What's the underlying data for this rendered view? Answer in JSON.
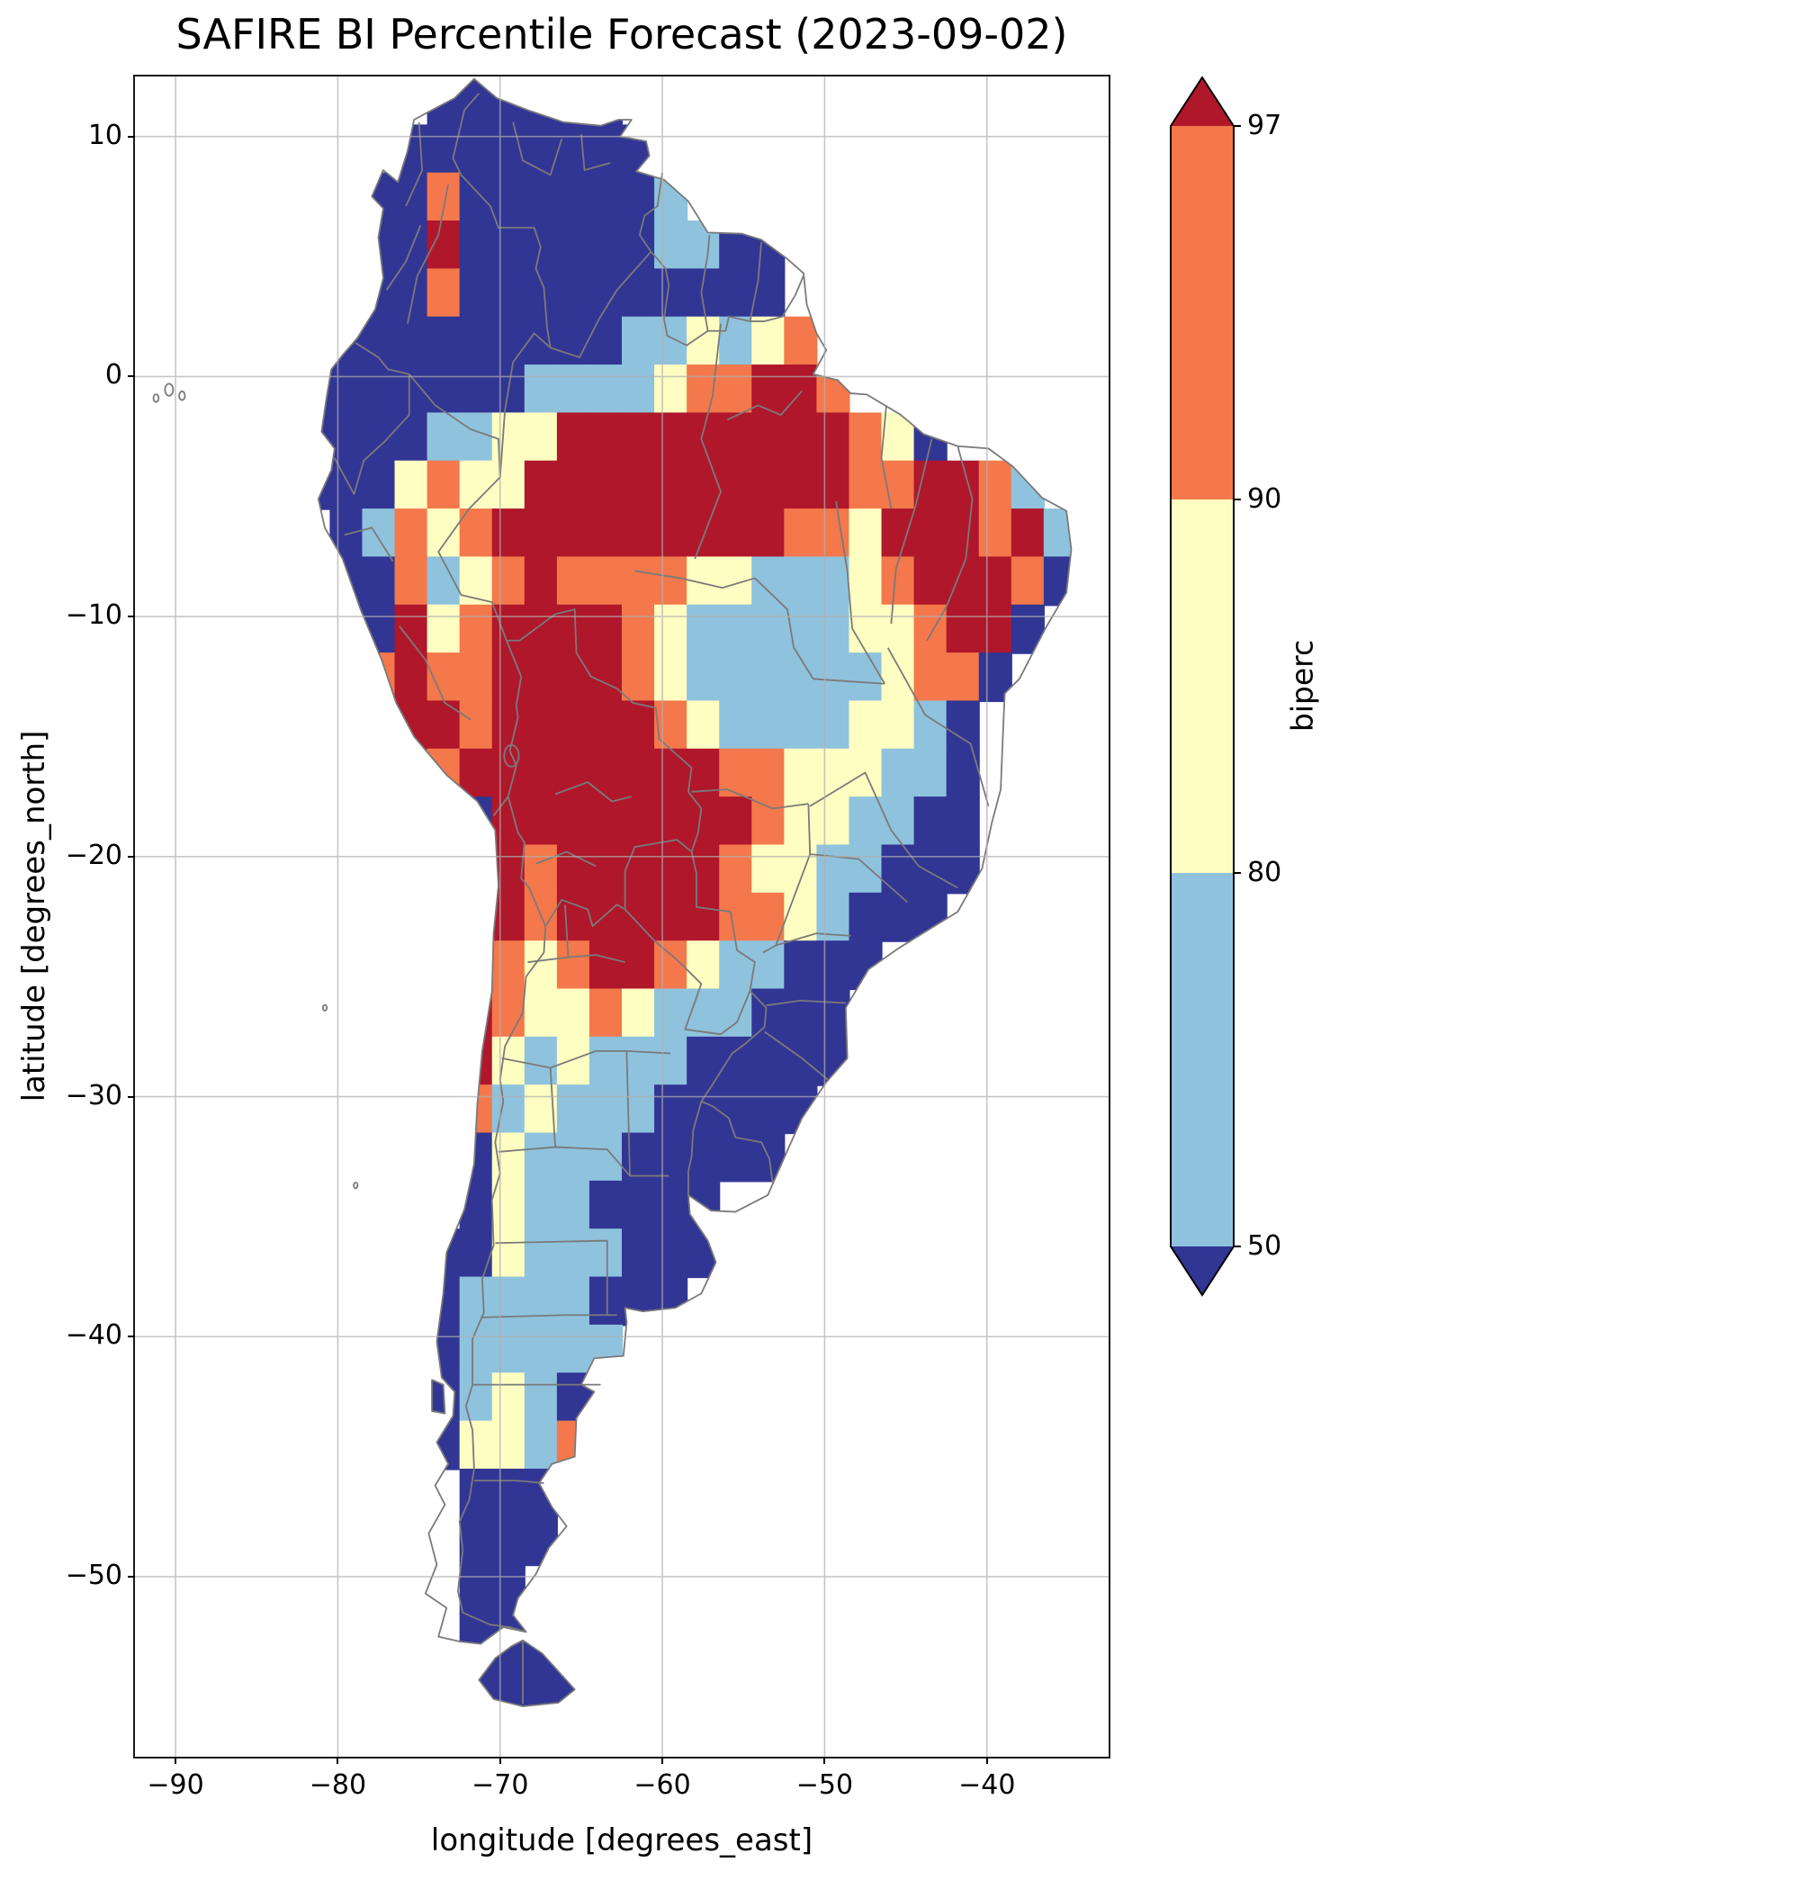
{
  "chart_data": {
    "type": "heatmap",
    "title": "SAFIRE BI Percentile Forecast (2023-09-02)",
    "xlabel": "longitude [degrees_east]",
    "ylabel": "latitude [degrees_north]",
    "xlim": [
      -92.5,
      -32.5
    ],
    "ylim": [
      -57.5,
      12.5
    ],
    "xticks": [
      -90,
      -80,
      -70,
      -60,
      -50,
      -40
    ],
    "xtick_labels": [
      "−90",
      "−80",
      "−70",
      "−60",
      "−50",
      "−40"
    ],
    "yticks": [
      10,
      0,
      -10,
      -20,
      -30,
      -40,
      -50
    ],
    "ytick_labels": [
      "10",
      "0",
      "−10",
      "−20",
      "−30",
      "−40",
      "−50"
    ],
    "grid_on": true,
    "colorbar": {
      "label": "biperc",
      "levels": [
        50,
        80,
        90,
        97
      ],
      "tick_labels": [
        "97",
        "90",
        "80",
        "50"
      ],
      "extend": "both",
      "colors": {
        "under": "#313695",
        "b50_80": "#8fc2dd",
        "b80_90": "#fefec2",
        "b90_97": "#f4784b",
        "over": "#b0172b"
      }
    },
    "raster": {
      "description": "BI percentile categories over South America on an approximate 2-degree grid; codes: . = no data, 0 = below 50, 1 = 50-80, 2 = 80-90, 3 = 90-97, 4 = 97 and above",
      "lon_origin": -92.5,
      "lat_origin": 12.5,
      "cell_size_deg": 2,
      "ncols": 30,
      "nrows": 35,
      "code_colors": {
        "0": "#313695",
        "1": "#8fc2dd",
        "2": "#fefec2",
        "3": "#f4784b",
        "4": "#b0172b"
      },
      "rows": [
        ".........000000...............",
        "........00000000..............",
        ".......0030000001.............",
        ".......0040000001100..........",
        ".......0030000000000..........",
        "......000000000112123.........",
        ".....00000001111233443........",
        ".....00001122444444444320.....",
        ".....00023224444444444334431..",
        "......01323444444444332444341.",
        "......00312343333221112344430.",
        "......0042344443211111223440..",
        "......034334444321111112330...",
        ".......0443444443211112210....",
        ".........34444444433222110....",
        "..........0444444443221100....",
        "..........4434444432211000....",
        "..........443444443321000.....",
        "..........4323443211000.......",
        "..........432232111000........",
        "..........421211100000........",
        "..........31211100000.........",
        "..........0211100000..........",
        "..........02110000............",
        ".........002111000............",
        ".........01111000.............",
        ".........011111...............",
        ".........012100...............",
        ".........02213................",
        "..........000.................",
        "..........000.................",
        "..........00..................",
        "..........000.................",
        "..........0000................",
        ".............................."
      ]
    }
  }
}
